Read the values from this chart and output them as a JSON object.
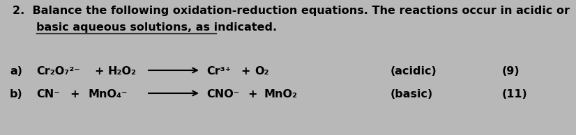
{
  "background_color": "#b8b8b8",
  "title_number": "2.",
  "title_line1": "Balance the following oxidation-reduction equations. The reactions occur in acidic or",
  "title_line2": "basic aqueous solutions, as indicated.",
  "font_size_title": 11.5,
  "font_size_eq": 11.5,
  "font_color": "#000000",
  "line_a": {
    "label": "a)",
    "r1": "Cr₂O₇²⁻",
    "p1": "+",
    "r2": "H₂O₂",
    "prod1": "Cr³⁺",
    "p2": "+",
    "prod2": "O₂",
    "cond": "(acidic)",
    "num": "(9)"
  },
  "line_b": {
    "label": "b)",
    "r1": "CN⁻",
    "p1": "+",
    "r2": "MnO₄⁻",
    "prod1": "CNO⁻",
    "p2": "+",
    "prod2": "MnO₂",
    "cond": "(basic)",
    "num": "(11)"
  },
  "arrow_color": "#000000",
  "underline_color": "#000000"
}
